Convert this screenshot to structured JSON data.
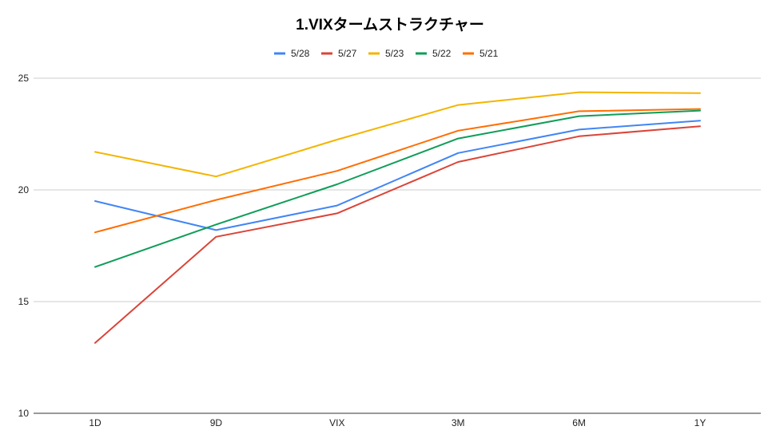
{
  "chart_data": {
    "type": "line",
    "title": "1.VIXタームストラクチャー",
    "xlabel": "",
    "ylabel": "",
    "categories": [
      "1D",
      "9D",
      "VIX",
      "3M",
      "6M",
      "1Y"
    ],
    "ylim": [
      10,
      25
    ],
    "yticks": [
      10,
      15,
      20,
      25
    ],
    "grid": true,
    "legend_position": "top-center",
    "series": [
      {
        "name": "5/28",
        "color": "#4285F4",
        "values": [
          19.5,
          18.2,
          19.3,
          21.65,
          22.7,
          23.1
        ]
      },
      {
        "name": "5/27",
        "color": "#DB4437",
        "values": [
          13.15,
          17.9,
          18.95,
          21.25,
          22.4,
          22.85
        ]
      },
      {
        "name": "5/23",
        "color": "#F4B400",
        "values": [
          21.7,
          20.6,
          22.25,
          23.8,
          24.37,
          24.33
        ]
      },
      {
        "name": "5/22",
        "color": "#0F9D58",
        "values": [
          16.55,
          18.45,
          20.25,
          22.3,
          23.3,
          23.55
        ]
      },
      {
        "name": "5/21",
        "color": "#FF6D00",
        "values": [
          18.1,
          19.55,
          20.85,
          22.65,
          23.52,
          23.62
        ]
      }
    ]
  }
}
